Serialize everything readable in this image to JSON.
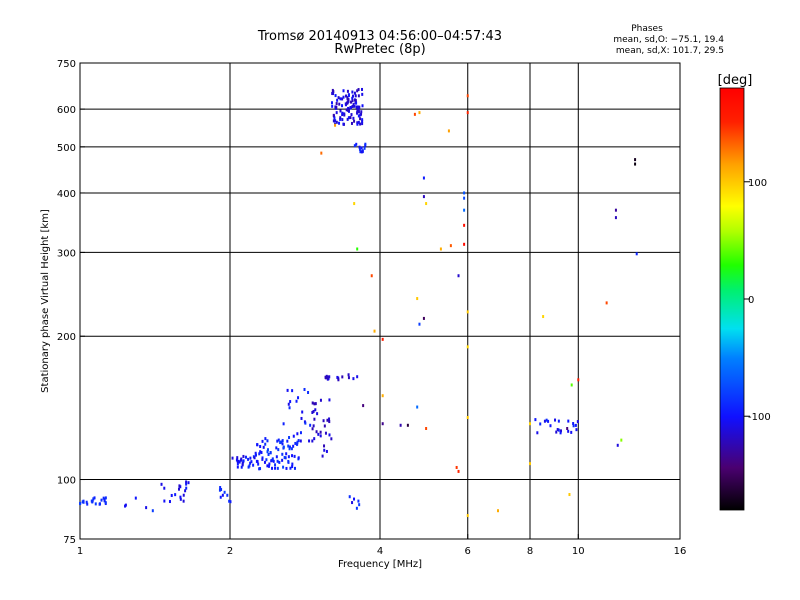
{
  "chart_data": {
    "type": "scatter",
    "title": "Tromsø 20140913 04:56:00–04:57:43",
    "subtitle": "RwPretec (8p)",
    "xlabel": "Frequency [MHz]",
    "ylabel": "Stationary phase Virtual Height [km]",
    "x_scale": "log",
    "y_scale": "log",
    "xlim": [
      1,
      16
    ],
    "ylim": [
      75,
      750
    ],
    "x_ticks": [
      1,
      2,
      4,
      6,
      8,
      10,
      16
    ],
    "y_ticks": [
      75,
      100,
      200,
      300,
      400,
      500,
      600,
      750
    ],
    "x_grid": [
      2,
      4,
      6,
      8,
      10
    ],
    "y_grid": [
      100,
      200,
      300,
      400,
      500,
      600
    ],
    "grid": true,
    "annotation": {
      "heading": "Phases",
      "line1": "mean, sd,O: −75.1, 19.4",
      "line2": "mean, sd,X: 101.7, 29.5"
    },
    "colorbar": {
      "label": "[deg]",
      "range": [
        -180,
        180
      ],
      "ticks": [
        100,
        0,
        -100
      ]
    },
    "clusters": [
      {
        "x0": 1.0,
        "x1": 1.13,
        "y0": 88,
        "y1": 92,
        "n": 22,
        "p0": -95,
        "p1": -80
      },
      {
        "x0": 1.18,
        "x1": 1.38,
        "y0": 86,
        "y1": 92,
        "n": 4,
        "p0": -110,
        "p1": -80
      },
      {
        "x0": 1.45,
        "x1": 1.68,
        "y0": 89,
        "y1": 99,
        "n": 18,
        "p0": -120,
        "p1": -90
      },
      {
        "x0": 1.88,
        "x1": 2.02,
        "y0": 88,
        "y1": 97,
        "n": 9,
        "p0": -110,
        "p1": -80
      },
      {
        "x0": 2.0,
        "x1": 2.25,
        "y0": 106,
        "y1": 112,
        "n": 26,
        "p0": -115,
        "p1": -85
      },
      {
        "x0": 2.25,
        "x1": 2.75,
        "y0": 105,
        "y1": 122,
        "n": 80,
        "p0": -105,
        "p1": -75
      },
      {
        "x0": 2.55,
        "x1": 2.9,
        "y0": 120,
        "y1": 162,
        "n": 22,
        "p0": -110,
        "p1": -80
      },
      {
        "x0": 2.9,
        "x1": 3.2,
        "y0": 112,
        "y1": 148,
        "n": 30,
        "p0": -125,
        "p1": -105
      },
      {
        "x0": 3.1,
        "x1": 3.6,
        "y0": 162,
        "y1": 166,
        "n": 16,
        "p0": -125,
        "p1": -105
      },
      {
        "x0": 3.2,
        "x1": 3.7,
        "y0": 555,
        "y1": 660,
        "n": 110,
        "p0": -125,
        "p1": -95
      },
      {
        "x0": 3.55,
        "x1": 3.75,
        "y0": 485,
        "y1": 515,
        "n": 12,
        "p0": -110,
        "p1": -80
      },
      {
        "x0": 3.4,
        "x1": 3.65,
        "y0": 87,
        "y1": 94,
        "n": 6,
        "p0": -110,
        "p1": -80
      },
      {
        "x0": 8.2,
        "x1": 10.0,
        "y0": 125,
        "y1": 134,
        "n": 22,
        "p0": -115,
        "p1": -85
      }
    ],
    "points": [
      {
        "x": 3.05,
        "y": 485,
        "p": 130
      },
      {
        "x": 3.25,
        "y": 555,
        "p": 115
      },
      {
        "x": 3.55,
        "y": 380,
        "p": 95
      },
      {
        "x": 3.6,
        "y": 305,
        "p": 30
      },
      {
        "x": 3.7,
        "y": 143,
        "p": -140
      },
      {
        "x": 3.85,
        "y": 268,
        "p": 140
      },
      {
        "x": 3.9,
        "y": 205,
        "p": 110
      },
      {
        "x": 4.05,
        "y": 197,
        "p": 155
      },
      {
        "x": 4.05,
        "y": 150,
        "p": 110
      },
      {
        "x": 4.05,
        "y": 131,
        "p": -135
      },
      {
        "x": 4.4,
        "y": 130,
        "p": -125
      },
      {
        "x": 4.55,
        "y": 130,
        "p": -160
      },
      {
        "x": 4.7,
        "y": 585,
        "p": 140
      },
      {
        "x": 4.8,
        "y": 590,
        "p": 110
      },
      {
        "x": 4.75,
        "y": 240,
        "p": 100
      },
      {
        "x": 4.8,
        "y": 212,
        "p": -80
      },
      {
        "x": 4.9,
        "y": 218,
        "p": -150
      },
      {
        "x": 4.9,
        "y": 430,
        "p": -95
      },
      {
        "x": 4.9,
        "y": 393,
        "p": -120
      },
      {
        "x": 4.95,
        "y": 380,
        "p": 95
      },
      {
        "x": 4.75,
        "y": 142,
        "p": -60
      },
      {
        "x": 4.95,
        "y": 128,
        "p": 140
      },
      {
        "x": 5.3,
        "y": 305,
        "p": 110
      },
      {
        "x": 5.5,
        "y": 540,
        "p": 115
      },
      {
        "x": 5.55,
        "y": 310,
        "p": 135
      },
      {
        "x": 5.7,
        "y": 106,
        "p": 145
      },
      {
        "x": 5.75,
        "y": 104,
        "p": 150
      },
      {
        "x": 5.75,
        "y": 268,
        "p": -115
      },
      {
        "x": 5.9,
        "y": 400,
        "p": -70
      },
      {
        "x": 5.9,
        "y": 390,
        "p": -75
      },
      {
        "x": 5.9,
        "y": 368,
        "p": -60
      },
      {
        "x": 5.9,
        "y": 342,
        "p": 165
      },
      {
        "x": 5.9,
        "y": 312,
        "p": 170
      },
      {
        "x": 6.0,
        "y": 640,
        "p": 140
      },
      {
        "x": 6.0,
        "y": 590,
        "p": 150
      },
      {
        "x": 6.0,
        "y": 225,
        "p": 100
      },
      {
        "x": 6.0,
        "y": 190,
        "p": 95
      },
      {
        "x": 6.0,
        "y": 135,
        "p": 100
      },
      {
        "x": 6.0,
        "y": 84,
        "p": 100
      },
      {
        "x": 6.9,
        "y": 86,
        "p": 110
      },
      {
        "x": 8.0,
        "y": 131,
        "p": 95
      },
      {
        "x": 8.0,
        "y": 108,
        "p": 100
      },
      {
        "x": 8.5,
        "y": 220,
        "p": 95
      },
      {
        "x": 9.5,
        "y": 128,
        "p": -140
      },
      {
        "x": 9.6,
        "y": 93,
        "p": 100
      },
      {
        "x": 9.7,
        "y": 158,
        "p": 40
      },
      {
        "x": 10.0,
        "y": 162,
        "p": 155
      },
      {
        "x": 11.4,
        "y": 235,
        "p": 140
      },
      {
        "x": 11.9,
        "y": 368,
        "p": -130
      },
      {
        "x": 11.9,
        "y": 355,
        "p": -120
      },
      {
        "x": 12.0,
        "y": 118,
        "p": -110
      },
      {
        "x": 12.2,
        "y": 121,
        "p": 50
      },
      {
        "x": 13.0,
        "y": 470,
        "p": -170
      },
      {
        "x": 13.0,
        "y": 460,
        "p": -175
      },
      {
        "x": 13.1,
        "y": 298,
        "p": -90
      },
      {
        "x": 1.4,
        "y": 86,
        "p": -80
      }
    ]
  }
}
